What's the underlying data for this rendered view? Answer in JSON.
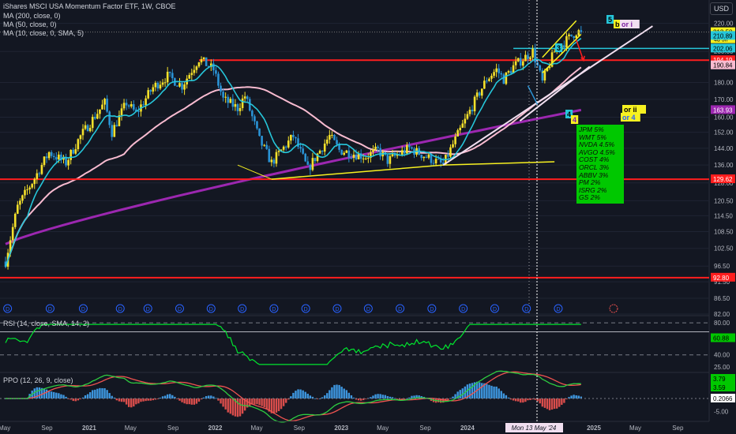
{
  "legend": {
    "title": "iShares MSCI USA Momentum Factor ETF, 1W, CBOE",
    "ma1": "MA (200, close, 0)",
    "ma2": "MA (50, close, 0)",
    "ma3": "MA (10, close, 0, SMA, 5)"
  },
  "currency": "USD",
  "rsi_label": "RSI (14, close, SMA, 14, 2)",
  "ppo_label": "PPO (12, 26, 9, close)",
  "holdings_note": [
    "JPM 5%",
    "WMT 5%",
    "NVDA 4.5%",
    "AVGO 4.5%",
    "COST 4%",
    "ORCL 3%",
    "ABBV 3%",
    "PM 2%",
    "ISRG 2%",
    "GS 2%"
  ],
  "wave_labels": [
    "3",
    "4",
    "5",
    "b",
    "or i",
    "4",
    "or ii",
    "or 4"
  ],
  "colors": {
    "background": "#131722",
    "grid": "#1f2433",
    "up": "#26a69a",
    "down": "#ef5350",
    "candle_up": "#f5e12b",
    "candle_down": "#2a93d5",
    "ma200": "#9c27b0",
    "ma50": "#f8bbd0",
    "ma10": "#26c6da",
    "red_line": "#ff1e1e",
    "yellow": "#f7f120",
    "rsi": "#00e62e",
    "note_green": "#00c800"
  },
  "chart_data": [
    {
      "type": "candlestick",
      "title": "iShares MSCI USA Momentum Factor ETF, 1W, CBOE",
      "x_axis": {
        "ticks": [
          "May",
          "Sep",
          "2021",
          "May",
          "Sep",
          "2022",
          "May",
          "Sep",
          "2023",
          "May",
          "Sep",
          "2024",
          "Sep",
          "2025",
          "May",
          "Sep"
        ]
      },
      "crosshair_label": "Mon 13 May '24",
      "y_axis": {
        "scale": "log",
        "range": [
          82.0,
          235.0
        ],
        "ticks": [
          220.0,
          200.0,
          180.0,
          170.0,
          160.0,
          152.0,
          144.0,
          136.0,
          128.0,
          120.5,
          114.5,
          108.5,
          102.5,
          96.5,
          91.5,
          86.5,
          82.0
        ]
      },
      "price_labels": [
        {
          "value": 213.58,
          "sub": "4d 5h",
          "color": "#f7f120"
        },
        {
          "value": 210.89,
          "color": "#26c6da"
        },
        {
          "value": 202.06,
          "color": "#26c6da"
        },
        {
          "value": 194.19,
          "color": "#ff1e1e"
        },
        {
          "value": 190.84,
          "color": "#f8bbd0"
        },
        {
          "value": 163.93,
          "color": "#9c27b0"
        },
        {
          "value": 129.62,
          "color": "#ff1e1e"
        },
        {
          "value": 92.8,
          "color": "#ff1e1e"
        }
      ],
      "horizontal_levels": [
        194.19,
        129.62,
        92.8,
        202.06
      ],
      "waypoints": [
        [
          "2020-05-04",
          98
        ],
        [
          "2020-06-08",
          118
        ],
        [
          "2020-07-27",
          130
        ],
        [
          "2020-09-07",
          142
        ],
        [
          "2020-10-26",
          137
        ],
        [
          "2020-12-07",
          150
        ],
        [
          "2021-01-04",
          157
        ],
        [
          "2021-02-15",
          168
        ],
        [
          "2021-03-08",
          152
        ],
        [
          "2021-04-19",
          168
        ],
        [
          "2021-05-17",
          162
        ],
        [
          "2021-07-05",
          177
        ],
        [
          "2021-08-16",
          184
        ],
        [
          "2021-09-27",
          178
        ],
        [
          "2021-11-15",
          195
        ],
        [
          "2021-12-27",
          188
        ],
        [
          "2022-01-24",
          170
        ],
        [
          "2022-03-07",
          165
        ],
        [
          "2022-03-28",
          172
        ],
        [
          "2022-05-09",
          148
        ],
        [
          "2022-06-13",
          137
        ],
        [
          "2022-08-15",
          150
        ],
        [
          "2022-09-26",
          134
        ],
        [
          "2022-11-28",
          150
        ],
        [
          "2022-12-26",
          143
        ],
        [
          "2023-03-13",
          140
        ],
        [
          "2023-04-17",
          143
        ],
        [
          "2023-05-15",
          138
        ],
        [
          "2023-07-17",
          144
        ],
        [
          "2023-08-21",
          141
        ],
        [
          "2023-10-23",
          136
        ],
        [
          "2023-12-25",
          158
        ],
        [
          "2024-02-26",
          182
        ],
        [
          "2024-03-25",
          188
        ],
        [
          "2024-04-15",
          182
        ],
        [
          "2024-05-13",
          190
        ],
        [
          "2024-07-08",
          200
        ],
        [
          "2024-08-05",
          180
        ],
        [
          "2024-09-09",
          200
        ],
        [
          "2024-11-11",
          214
        ],
        [
          "2024-11-25",
          213.58
        ]
      ],
      "ma200_endpoints": [
        [
          "2020-05-04",
          104
        ],
        [
          "2024-11-25",
          163.93
        ]
      ],
      "annotations": [
        "3",
        "4",
        "5",
        "b",
        "or i",
        "4",
        "or ii",
        "or 4"
      ]
    },
    {
      "type": "line",
      "title": "RSI (14, close, SMA, 14, 2)",
      "y_axis": {
        "ticks": [
          80.0,
          40.0,
          25.0
        ]
      },
      "last_value": 60.88
    },
    {
      "type": "line",
      "title": "PPO (12, 26, 9, close)",
      "y_axis": {
        "ticks": [
          -5.0
        ]
      },
      "last_values": [
        3.79,
        3.59,
        0.2066
      ]
    }
  ]
}
